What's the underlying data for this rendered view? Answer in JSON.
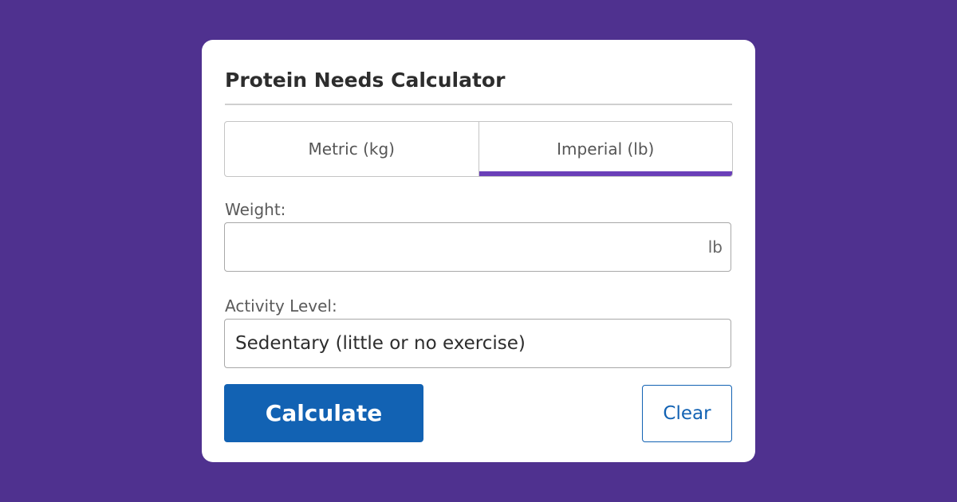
{
  "calculator": {
    "title": "Protein Needs Calculator",
    "tabs": [
      {
        "label": "Metric (kg)",
        "active": false
      },
      {
        "label": "Imperial (lb)",
        "active": true
      }
    ],
    "weight": {
      "label": "Weight:",
      "value": "",
      "unit": "lb"
    },
    "activity": {
      "label": "Activity Level:",
      "selected": "Sedentary (little or no exercise)"
    },
    "calculate_label": "Calculate",
    "clear_label": "Clear"
  },
  "colors": {
    "background": "#4f318f",
    "accent": "#6a3fb8",
    "primary": "#1262b3"
  }
}
